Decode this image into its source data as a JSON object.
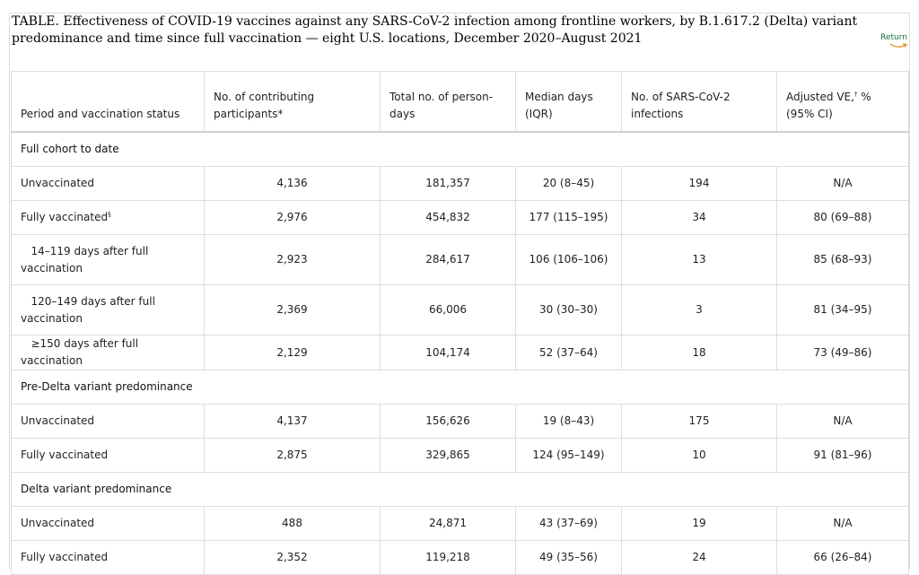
{
  "title": "TABLE. Effectiveness of COVID-19 vaccines against any SARS-CoV-2 infection among frontline workers, by B.1.617.2 (Delta) variant predominance and time since full vaccination — eight U.S. locations, December 2020–August 2021",
  "return_label": "Return",
  "headers": {
    "period": "Period and vaccination status",
    "participants": "No. of contributing participants*",
    "person_days": "Total no. of person-days",
    "median_days": "Median days (IQR)",
    "infections": "No. of SARS-CoV-2 infections",
    "ve_prefix": "Adjusted VE,",
    "ve_sup": "†",
    "ve_suffix": " % (95% CI)"
  },
  "sections": [
    {
      "label": "Full cohort to date",
      "rows": [
        {
          "status": "Unvaccinated",
          "sup": "",
          "participants": "4,136",
          "person_days": "181,357",
          "median": "20 (8–45)",
          "infections": "194",
          "ve": "N/A"
        },
        {
          "status": "Fully vaccinated",
          "sup": "§",
          "participants": "2,976",
          "person_days": "454,832",
          "median": "177 (115–195)",
          "infections": "34",
          "ve": "80 (69–88)"
        },
        {
          "status": "14–119 days after full vaccination",
          "sup": "",
          "participants": "2,923",
          "person_days": "284,617",
          "median": "106 (106–106)",
          "infections": "13",
          "ve": "85 (68–93)"
        },
        {
          "status": "120–149 days after full vaccination",
          "sup": "",
          "participants": "2,369",
          "person_days": "66,006",
          "median": "30 (30–30)",
          "infections": "3",
          "ve": "81 (34–95)"
        },
        {
          "status": "≥150 days after full vaccination",
          "sup": "",
          "participants": "2,129",
          "person_days": "104,174",
          "median": "52 (37–64)",
          "infections": "18",
          "ve": "73 (49–86)"
        }
      ]
    },
    {
      "label": "Pre-Delta variant predominance",
      "rows": [
        {
          "status": "Unvaccinated",
          "sup": "",
          "participants": "4,137",
          "person_days": "156,626",
          "median": "19 (8–43)",
          "infections": "175",
          "ve": "N/A"
        },
        {
          "status": "Fully vaccinated",
          "sup": "",
          "participants": "2,875",
          "person_days": "329,865",
          "median": "124 (95–149)",
          "infections": "10",
          "ve": "91 (81–96)"
        }
      ]
    },
    {
      "label": "Delta variant predominance",
      "rows": [
        {
          "status": "Unvaccinated",
          "sup": "",
          "participants": "488",
          "person_days": "24,871",
          "median": "43 (37–69)",
          "infections": "19",
          "ve": "N/A"
        },
        {
          "status": "Fully vaccinated",
          "sup": "",
          "participants": "2,352",
          "person_days": "119,218",
          "median": "49 (35–56)",
          "infections": "24",
          "ve": "66 (26–84)"
        }
      ]
    }
  ]
}
